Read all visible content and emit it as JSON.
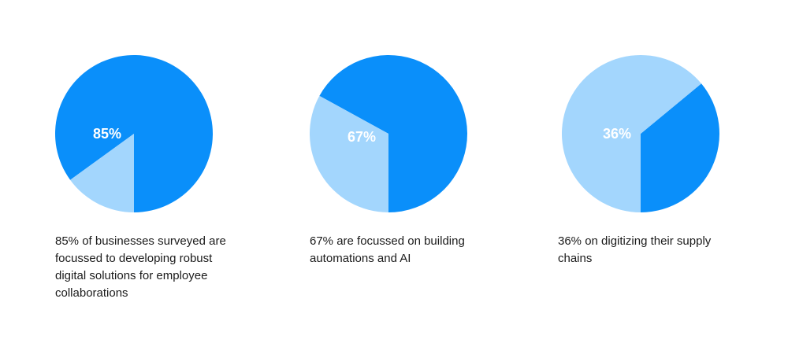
{
  "colors": {
    "primary": "#0a8ffa",
    "secondary": "#a3d6fd",
    "label": "#ffffff",
    "caption": "#1b1b1b"
  },
  "chart_data": [
    {
      "type": "pie",
      "slices": [
        {
          "label": "85%",
          "value": 85,
          "color": "#0a8ffa"
        },
        {
          "label": "",
          "value": 15,
          "color": "#a3d6fd"
        }
      ],
      "caption": "85% of businesses surveyed are focussed to developing robust digital solutions for employee collaborations"
    },
    {
      "type": "pie",
      "slices": [
        {
          "label": "67%",
          "value": 67,
          "color": "#0a8ffa"
        },
        {
          "label": "",
          "value": 33,
          "color": "#a3d6fd"
        }
      ],
      "caption": "67% are focussed on building automations and AI"
    },
    {
      "type": "pie",
      "slices": [
        {
          "label": "36%",
          "value": 36,
          "color": "#0a8ffa"
        },
        {
          "label": "",
          "value": 64,
          "color": "#a3d6fd"
        }
      ],
      "caption": "36% on digitizing their supply chains"
    }
  ]
}
